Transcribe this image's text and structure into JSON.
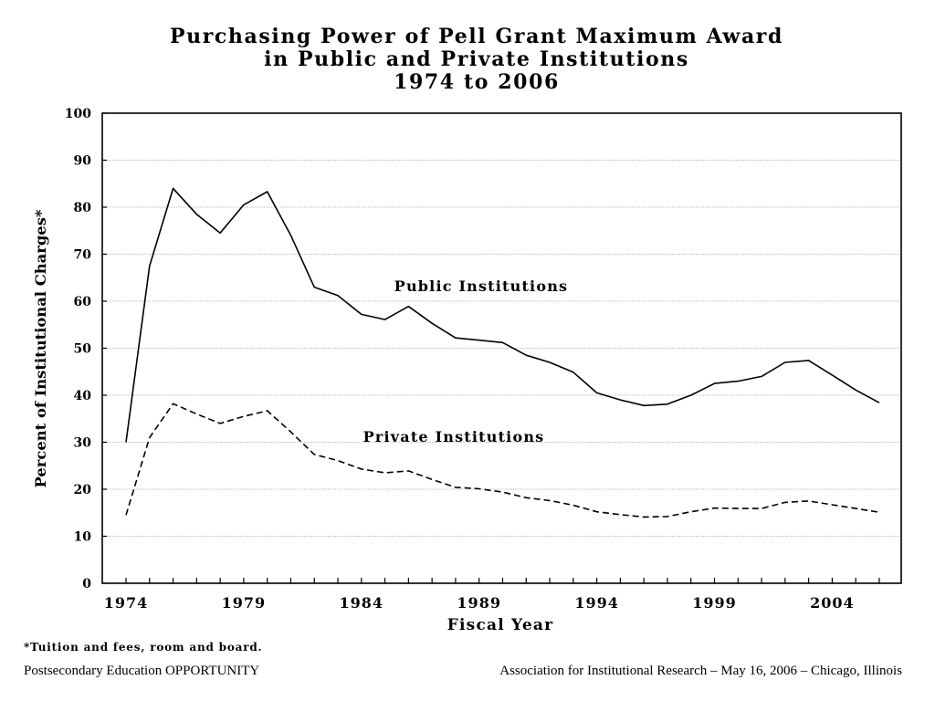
{
  "title_lines": [
    "Purchasing Power of Pell Grant Maximum Award",
    "in Public and Private Institutions",
    "1974 to 2006"
  ],
  "footnote": "*Tuition and fees, room and board.",
  "footer": {
    "left": "Postsecondary Education OPPORTUNITY",
    "right": "Association for Institutional Research – May 16, 2006 – Chicago, Illinois"
  },
  "chart_data": {
    "type": "line",
    "title": "Purchasing Power of Pell Grant Maximum Award in Public and Private Institutions 1974 to 2006",
    "xlabel": "Fiscal Year",
    "ylabel": "Percent of Institutional Charges*",
    "xlim": [
      1974,
      2006
    ],
    "ylim": [
      0,
      100
    ],
    "yticks": [
      0,
      10,
      20,
      30,
      40,
      50,
      60,
      70,
      80,
      90,
      100
    ],
    "xtick_labels": [
      "1974",
      "1979",
      "1984",
      "1989",
      "1994",
      "1999",
      "2004"
    ],
    "grid": true,
    "x": [
      1974,
      1975,
      1976,
      1977,
      1978,
      1979,
      1980,
      1981,
      1982,
      1983,
      1984,
      1985,
      1986,
      1987,
      1988,
      1989,
      1990,
      1991,
      1992,
      1993,
      1994,
      1995,
      1996,
      1997,
      1998,
      1999,
      2000,
      2001,
      2002,
      2003,
      2004,
      2005,
      2006
    ],
    "series": [
      {
        "name": "Public Institutions",
        "style": "solid",
        "values": [
          30,
          67.5,
          84,
          78.5,
          74.5,
          80.5,
          83.3,
          74,
          63,
          61.2,
          57.2,
          56.1,
          58.9,
          55.3,
          52.2,
          51.7,
          51.2,
          48.5,
          47,
          44.9,
          40.5,
          39,
          37.8,
          38.1,
          40,
          42.5,
          43,
          44,
          47,
          47.4,
          44.3,
          41.1,
          38.4
        ]
      },
      {
        "name": "Private Institutions",
        "style": "dashed",
        "values": [
          14.5,
          31,
          38.2,
          36,
          34,
          35.5,
          36.7,
          32.2,
          27.4,
          26.1,
          24.3,
          23.5,
          23.9,
          22.1,
          20.4,
          20.1,
          19.4,
          18.2,
          17.6,
          16.6,
          15.2,
          14.6,
          14.1,
          14.2,
          15.2,
          16,
          15.9,
          15.9,
          17.2,
          17.5,
          16.7,
          15.9,
          15.1
        ]
      }
    ],
    "colors": {
      "lines": "#000000",
      "grid": "#9a9a9a"
    }
  }
}
